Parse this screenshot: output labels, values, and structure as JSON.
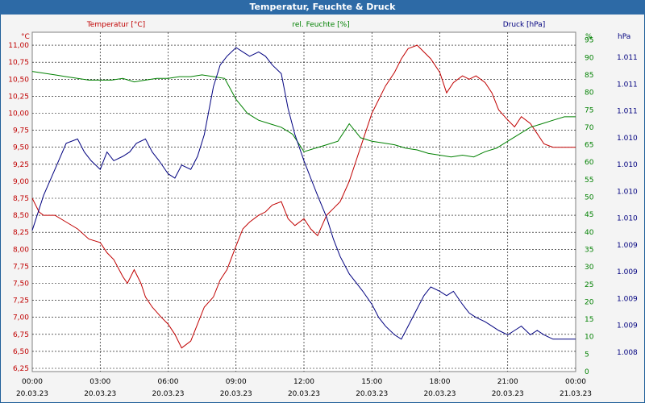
{
  "window": {
    "title": "Temperatur, Feuchte & Druck"
  },
  "chart_data": {
    "type": "line",
    "legend": {
      "temperature": "Temperatur [°C]",
      "humidity": "rel. Feuchte [%]",
      "pressure": "Druck [hPa]"
    },
    "axes": {
      "left_unit": "°C",
      "right1_unit": "%",
      "right2_unit": "hPa",
      "left_ticks": [
        "6,25",
        "6,50",
        "6,75",
        "7,00",
        "7,25",
        "7,50",
        "7,75",
        "8,00",
        "8,25",
        "8,50",
        "8,75",
        "9,00",
        "9,25",
        "9,50",
        "9,75",
        "10,00",
        "10,25",
        "10,50",
        "10,75",
        "11,00"
      ],
      "humidity_ticks": [
        "0",
        "5",
        "10",
        "15",
        "20",
        "25",
        "30",
        "35",
        "40",
        "45",
        "50",
        "55",
        "60",
        "65",
        "70",
        "75",
        "80",
        "85",
        "90",
        "95"
      ],
      "pressure_ticks": [
        "1.008",
        "1.009",
        "1.009",
        "1.009",
        "1.009",
        "1.010",
        "1.010",
        "1.010",
        "1.010",
        "1.011",
        "1.011",
        "1.011"
      ],
      "x_time_ticks": [
        "00:00",
        "03:00",
        "06:00",
        "09:00",
        "12:00",
        "15:00",
        "18:00",
        "21:00",
        "00:00"
      ],
      "x_date_ticks": [
        "20.03.23",
        "20.03.23",
        "20.03.23",
        "20.03.23",
        "20.03.23",
        "20.03.23",
        "20.03.23",
        "20.03.23",
        "21.03.23"
      ],
      "temp_ylim": [
        6.25,
        11.25
      ],
      "humidity_ylim": [
        0,
        100
      ],
      "xlim_hours": [
        0,
        24
      ],
      "grid": true
    },
    "series": [
      {
        "name": "Temperatur [°C]",
        "color": "#c00000",
        "x": [
          0,
          0.3,
          0.5,
          1,
          1.5,
          2,
          2.5,
          3,
          3.3,
          3.6,
          4,
          4.2,
          4.5,
          4.8,
          5,
          5.3,
          5.7,
          6,
          6.3,
          6.6,
          7,
          7.3,
          7.6,
          8,
          8.3,
          8.6,
          9,
          9.3,
          9.6,
          10,
          10.3,
          10.6,
          11,
          11.3,
          11.6,
          12,
          12.3,
          12.6,
          13,
          13.3,
          13.6,
          14,
          14.3,
          14.6,
          15,
          15.3,
          15.6,
          16,
          16.3,
          16.6,
          17,
          17.3,
          17.6,
          18,
          18.3,
          18.6,
          19,
          19.3,
          19.6,
          20,
          20.3,
          20.6,
          21,
          21.3,
          21.6,
          22,
          22.3,
          22.6,
          23,
          23.3,
          23.6,
          24
        ],
        "y": [
          8.75,
          8.55,
          8.5,
          8.5,
          8.4,
          8.3,
          8.15,
          8.1,
          7.95,
          7.85,
          7.6,
          7.5,
          7.7,
          7.5,
          7.3,
          7.15,
          7.0,
          6.9,
          6.75,
          6.55,
          6.65,
          6.9,
          7.15,
          7.3,
          7.55,
          7.7,
          8.05,
          8.3,
          8.4,
          8.5,
          8.55,
          8.65,
          8.7,
          8.45,
          8.35,
          8.45,
          8.3,
          8.2,
          8.5,
          8.6,
          8.7,
          9.0,
          9.3,
          9.6,
          10.0,
          10.2,
          10.4,
          10.6,
          10.8,
          10.95,
          11.0,
          10.9,
          10.8,
          10.6,
          10.3,
          10.45,
          10.55,
          10.5,
          10.55,
          10.45,
          10.3,
          10.05,
          9.9,
          9.8,
          9.95,
          9.85,
          9.7,
          9.55,
          9.5,
          9.5,
          9.5,
          9.5
        ]
      },
      {
        "name": "rel. Feuchte [%]",
        "color": "#008000",
        "x": [
          0,
          0.5,
          1,
          1.5,
          2,
          2.5,
          3,
          3.5,
          4,
          4.5,
          5,
          5.5,
          6,
          6.5,
          7,
          7.5,
          8,
          8.5,
          9,
          9.5,
          10,
          10.5,
          11,
          11.5,
          12,
          12.5,
          13,
          13.5,
          14,
          14.5,
          15,
          15.5,
          16,
          16.5,
          17,
          17.5,
          18,
          18.5,
          19,
          19.5,
          20,
          20.5,
          21,
          21.5,
          22,
          22.5,
          23,
          23.5,
          24
        ],
        "y": [
          86,
          85.5,
          85,
          84.5,
          84,
          83.5,
          83.5,
          83.5,
          84,
          83,
          83.5,
          84,
          84,
          84.5,
          84.5,
          85,
          84.5,
          84,
          78,
          74,
          72,
          71,
          70,
          68,
          63,
          64,
          65,
          66,
          71,
          67,
          66,
          65.5,
          65,
          64,
          63.5,
          62.5,
          62,
          61.5,
          62,
          61.5,
          63,
          64,
          66,
          68,
          70,
          71,
          72,
          73,
          73
        ]
      },
      {
        "name": "Druck [hPa]",
        "color": "#00007f",
        "pressure_ylim": [
          1007.8,
          1011.3
        ],
        "x": [
          0,
          0.5,
          1,
          1.5,
          2,
          2.3,
          2.6,
          3,
          3.3,
          3.6,
          4,
          4.3,
          4.6,
          5,
          5.3,
          5.6,
          6,
          6.3,
          6.6,
          7,
          7.3,
          7.6,
          8,
          8.3,
          8.6,
          9,
          9.3,
          9.6,
          10,
          10.3,
          10.6,
          11,
          11.3,
          11.6,
          12,
          12.3,
          12.6,
          13,
          13.3,
          13.6,
          14,
          14.3,
          14.6,
          15,
          15.3,
          15.6,
          16,
          16.3,
          16.6,
          17,
          17.3,
          17.6,
          18,
          18.3,
          18.6,
          19,
          19.3,
          19.6,
          20,
          20.3,
          20.6,
          21,
          21.3,
          21.6,
          22,
          22.3,
          22.6,
          23,
          23.3,
          23.6,
          24
        ],
        "y": [
          1009.2,
          1009.6,
          1009.9,
          1010.2,
          1010.25,
          1010.1,
          1010.0,
          1009.9,
          1010.1,
          1010.0,
          1010.05,
          1010.1,
          1010.2,
          1010.25,
          1010.1,
          1010.0,
          1009.85,
          1009.8,
          1009.95,
          1009.9,
          1010.05,
          1010.3,
          1010.85,
          1011.1,
          1011.2,
          1011.3,
          1011.25,
          1011.2,
          1011.25,
          1011.2,
          1011.1,
          1011.0,
          1010.6,
          1010.3,
          1010.0,
          1009.8,
          1009.6,
          1009.35,
          1009.1,
          1008.9,
          1008.7,
          1008.6,
          1008.5,
          1008.35,
          1008.2,
          1008.1,
          1008.0,
          1007.95,
          1008.1,
          1008.3,
          1008.45,
          1008.55,
          1008.5,
          1008.45,
          1008.5,
          1008.35,
          1008.25,
          1008.2,
          1008.15,
          1008.1,
          1008.05,
          1008.0,
          1008.05,
          1008.1,
          1008.0,
          1008.05,
          1008.0,
          1007.95,
          1007.95,
          1007.95,
          1007.95
        ]
      }
    ]
  }
}
